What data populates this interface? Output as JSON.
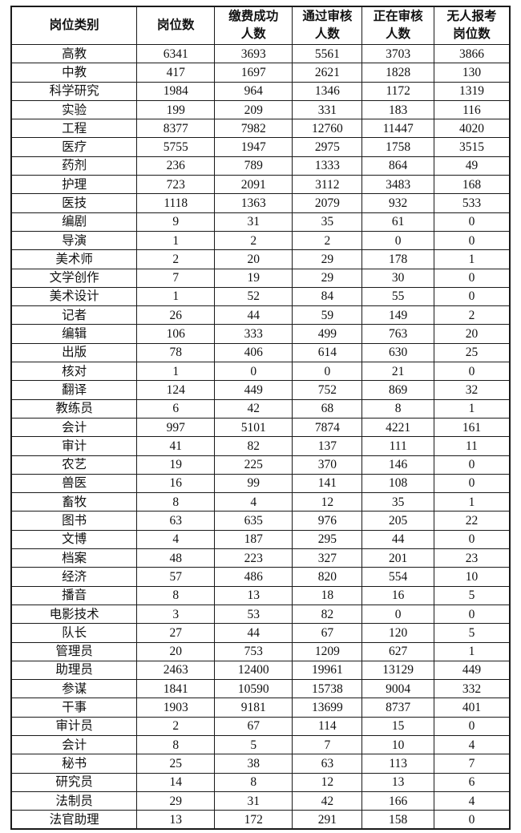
{
  "colors": {
    "page-bg": "#ffffff",
    "border-color": "#1a1a1a",
    "text-color": "#111111"
  },
  "table": {
    "headers": [
      "岗位类别",
      "岗位数",
      "缴费成功\n人数",
      "通过审核\n人数",
      "正在审核\n人数",
      "无人报考\n岗位数"
    ],
    "rows": [
      [
        "高教",
        "6341",
        "3693",
        "5561",
        "3703",
        "3866"
      ],
      [
        "中教",
        "417",
        "1697",
        "2621",
        "1828",
        "130"
      ],
      [
        "科学研究",
        "1984",
        "964",
        "1346",
        "1172",
        "1319"
      ],
      [
        "实验",
        "199",
        "209",
        "331",
        "183",
        "116"
      ],
      [
        "工程",
        "8377",
        "7982",
        "12760",
        "11447",
        "4020"
      ],
      [
        "医疗",
        "5755",
        "1947",
        "2975",
        "1758",
        "3515"
      ],
      [
        "药剂",
        "236",
        "789",
        "1333",
        "864",
        "49"
      ],
      [
        "护理",
        "723",
        "2091",
        "3112",
        "3483",
        "168"
      ],
      [
        "医技",
        "1118",
        "1363",
        "2079",
        "932",
        "533"
      ],
      [
        "编剧",
        "9",
        "31",
        "35",
        "61",
        "0"
      ],
      [
        "导演",
        "1",
        "2",
        "2",
        "0",
        "0"
      ],
      [
        "美术师",
        "2",
        "20",
        "29",
        "178",
        "1"
      ],
      [
        "文学创作",
        "7",
        "19",
        "29",
        "30",
        "0"
      ],
      [
        "美术设计",
        "1",
        "52",
        "84",
        "55",
        "0"
      ],
      [
        "记者",
        "26",
        "44",
        "59",
        "149",
        "2"
      ],
      [
        "编辑",
        "106",
        "333",
        "499",
        "763",
        "20"
      ],
      [
        "出版",
        "78",
        "406",
        "614",
        "630",
        "25"
      ],
      [
        "核对",
        "1",
        "0",
        "0",
        "21",
        "0"
      ],
      [
        "翻译",
        "124",
        "449",
        "752",
        "869",
        "32"
      ],
      [
        "教练员",
        "6",
        "42",
        "68",
        "8",
        "1"
      ],
      [
        "会计",
        "997",
        "5101",
        "7874",
        "4221",
        "161"
      ],
      [
        "审计",
        "41",
        "82",
        "137",
        "111",
        "11"
      ],
      [
        "农艺",
        "19",
        "225",
        "370",
        "146",
        "0"
      ],
      [
        "兽医",
        "16",
        "99",
        "141",
        "108",
        "0"
      ],
      [
        "畜牧",
        "8",
        "4",
        "12",
        "35",
        "1"
      ],
      [
        "图书",
        "63",
        "635",
        "976",
        "205",
        "22"
      ],
      [
        "文博",
        "4",
        "187",
        "295",
        "44",
        "0"
      ],
      [
        "档案",
        "48",
        "223",
        "327",
        "201",
        "23"
      ],
      [
        "经济",
        "57",
        "486",
        "820",
        "554",
        "10"
      ],
      [
        "播音",
        "8",
        "13",
        "18",
        "16",
        "5"
      ],
      [
        "电影技术",
        "3",
        "53",
        "82",
        "0",
        "0"
      ],
      [
        "队长",
        "27",
        "44",
        "67",
        "120",
        "5"
      ],
      [
        "管理员",
        "20",
        "753",
        "1209",
        "627",
        "1"
      ],
      [
        "助理员",
        "2463",
        "12400",
        "19961",
        "13129",
        "449"
      ],
      [
        "参谋",
        "1841",
        "10590",
        "15738",
        "9004",
        "332"
      ],
      [
        "干事",
        "1903",
        "9181",
        "13699",
        "8737",
        "401"
      ],
      [
        "审计员",
        "2",
        "67",
        "114",
        "15",
        "0"
      ],
      [
        "会计",
        "8",
        "5",
        "7",
        "10",
        "4"
      ],
      [
        "秘书",
        "25",
        "38",
        "63",
        "113",
        "7"
      ],
      [
        "研究员",
        "14",
        "8",
        "12",
        "13",
        "6"
      ],
      [
        "法制员",
        "29",
        "31",
        "42",
        "166",
        "4"
      ],
      [
        "法官助理",
        "13",
        "172",
        "291",
        "158",
        "0"
      ]
    ]
  }
}
